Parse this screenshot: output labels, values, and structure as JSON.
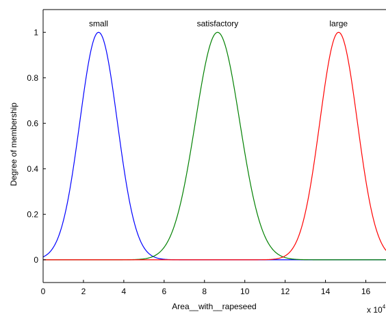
{
  "chart_data": {
    "type": "line",
    "title": "",
    "xlabel": "Area__with__rapeseed",
    "ylabel": "Degree of membership",
    "x_multiplier_label": "x 10",
    "x_multiplier_exponent": "4",
    "xlim": [
      0,
      17
    ],
    "ylim": [
      -0.1,
      1.1
    ],
    "x_ticks": [
      0,
      2,
      4,
      6,
      8,
      10,
      12,
      14,
      16
    ],
    "x_tick_labels": [
      "0",
      "2",
      "4",
      "6",
      "8",
      "10",
      "12",
      "14",
      "16"
    ],
    "y_ticks": [
      0,
      0.2,
      0.4,
      0.6,
      0.8,
      1
    ],
    "y_tick_labels": [
      "0",
      "0.2",
      "0.4",
      "0.6",
      "0.8",
      "1"
    ],
    "grid": false,
    "legend": "none",
    "series": [
      {
        "name": "small",
        "shape": "gaussian",
        "mean": 2.75,
        "sigma": 0.93,
        "color": "#0000ff"
      },
      {
        "name": "satisfactory",
        "shape": "gaussian",
        "mean": 8.65,
        "sigma": 1.1,
        "color": "#008000"
      },
      {
        "name": "large",
        "shape": "gaussian",
        "mean": 14.65,
        "sigma": 0.93,
        "color": "#ff0000"
      }
    ]
  }
}
